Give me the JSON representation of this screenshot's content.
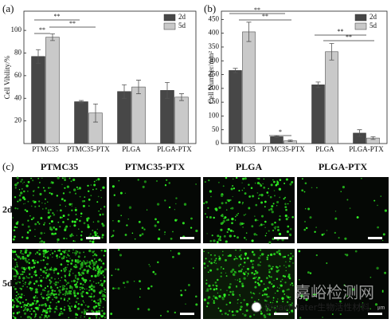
{
  "chart_data": [
    {
      "type": "bar",
      "panel_label": "(a)",
      "y_label": "Cell Vibility/%",
      "categories": [
        "PTMC35",
        "PTMC35-PTX",
        "PLGA",
        "PLGA-PTX"
      ],
      "series": [
        {
          "name": "2d",
          "color": "#474747",
          "values": [
            77,
            37,
            46,
            47
          ],
          "errors": [
            6,
            1,
            6,
            7
          ]
        },
        {
          "name": "5d",
          "color": "#c9c9c9",
          "values": [
            94,
            27,
            50,
            41
          ],
          "errors": [
            3,
            8,
            6,
            3
          ]
        }
      ],
      "ylim": [
        0,
        117
      ],
      "yticks": [
        20,
        40,
        60,
        80,
        100
      ],
      "annotations": [
        "**",
        "**",
        "**"
      ],
      "legend": "upper right"
    },
    {
      "type": "bar",
      "panel_label": "(b)",
      "y_label": "Cell Number/mm²",
      "categories": [
        "PTMC35",
        "PTMC35-PTX",
        "PLGA",
        "PLGA-PTX"
      ],
      "series": [
        {
          "name": "2d",
          "color": "#474747",
          "values": [
            265,
            25,
            213,
            38
          ],
          "errors": [
            8,
            3,
            10,
            12
          ]
        },
        {
          "name": "5d",
          "color": "#c9c9c9",
          "values": [
            405,
            10,
            333,
            20
          ],
          "errors": [
            35,
            3,
            30,
            5
          ]
        }
      ],
      "ylim": [
        0,
        480
      ],
      "yticks": [
        0,
        50,
        100,
        150,
        200,
        250,
        300,
        350,
        400,
        450
      ],
      "annotations": [
        "**",
        "**",
        "*",
        "**",
        "**"
      ],
      "legend": "upper right"
    }
  ],
  "micrographs": {
    "panel_label": "(c)",
    "columns": [
      "PTMC35",
      "PTMC35-PTX",
      "PLGA",
      "PLGA-PTX"
    ],
    "rows": [
      "2d",
      "5d"
    ]
  },
  "watermark": {
    "site": "嘉峪检测网",
    "account": "BioactMater生物活性材料",
    "corner": "μm"
  }
}
